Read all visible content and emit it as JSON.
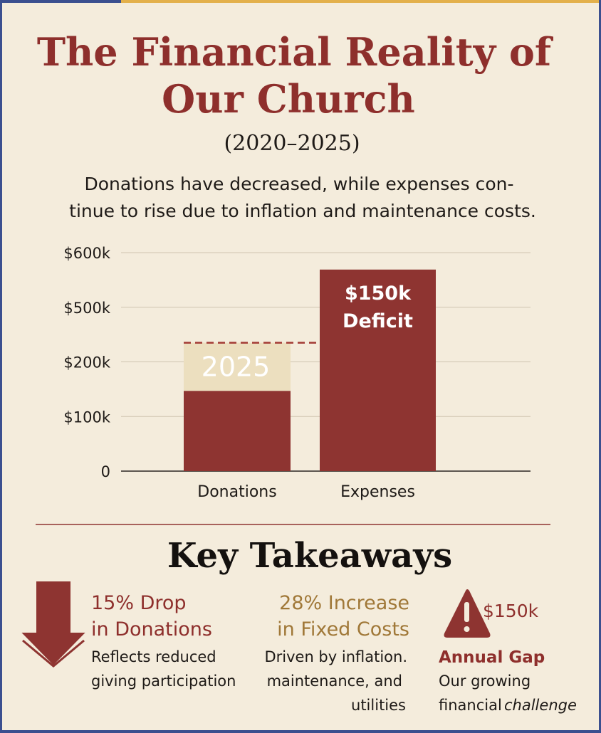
{
  "header": {
    "title": [
      "The Financial Reality of",
      "Our Church"
    ],
    "subtitle": "(2020–2025)",
    "description": [
      "Donations have decreased, while expenses con-",
      "tinue to rise due to inflation and maintenance costs."
    ]
  },
  "chart_data": {
    "type": "bar",
    "categories": [
      "Donations",
      "Expenses"
    ],
    "values": [
      147,
      569
    ],
    "color": "#8e3431",
    "overlay": {
      "label": "2025",
      "values": [
        158,
        null
      ],
      "color": "#ecdfbf"
    },
    "annotation": [
      "$150k",
      "Deficit"
    ],
    "ylim": [
      0,
      600
    ],
    "yticks": [
      0,
      {
        "value": 100,
        "label": "$100k"
      },
      {
        "value": 200,
        "label": "$200k"
      },
      {
        "value": 500,
        "label": "$500k"
      },
      {
        "value": 600,
        "label": "$600k"
      }
    ],
    "grid": true
  },
  "takeaways": {
    "title": "Key Takeaways",
    "items": [
      {
        "title": [
          "15% Drop",
          "in Donations"
        ],
        "desc": [
          "Reflects reduced",
          "giving participation"
        ]
      },
      {
        "title": [
          "28% Increase",
          "in Fixed Costs"
        ],
        "desc": [
          "Driven by inflation.",
          "maintenance, and",
          "utilities"
        ]
      },
      {
        "amount": "$150k",
        "title": [
          "Annual Gap"
        ],
        "desc": [
          "Our growing",
          "financial",
          "challenge"
        ]
      }
    ]
  }
}
